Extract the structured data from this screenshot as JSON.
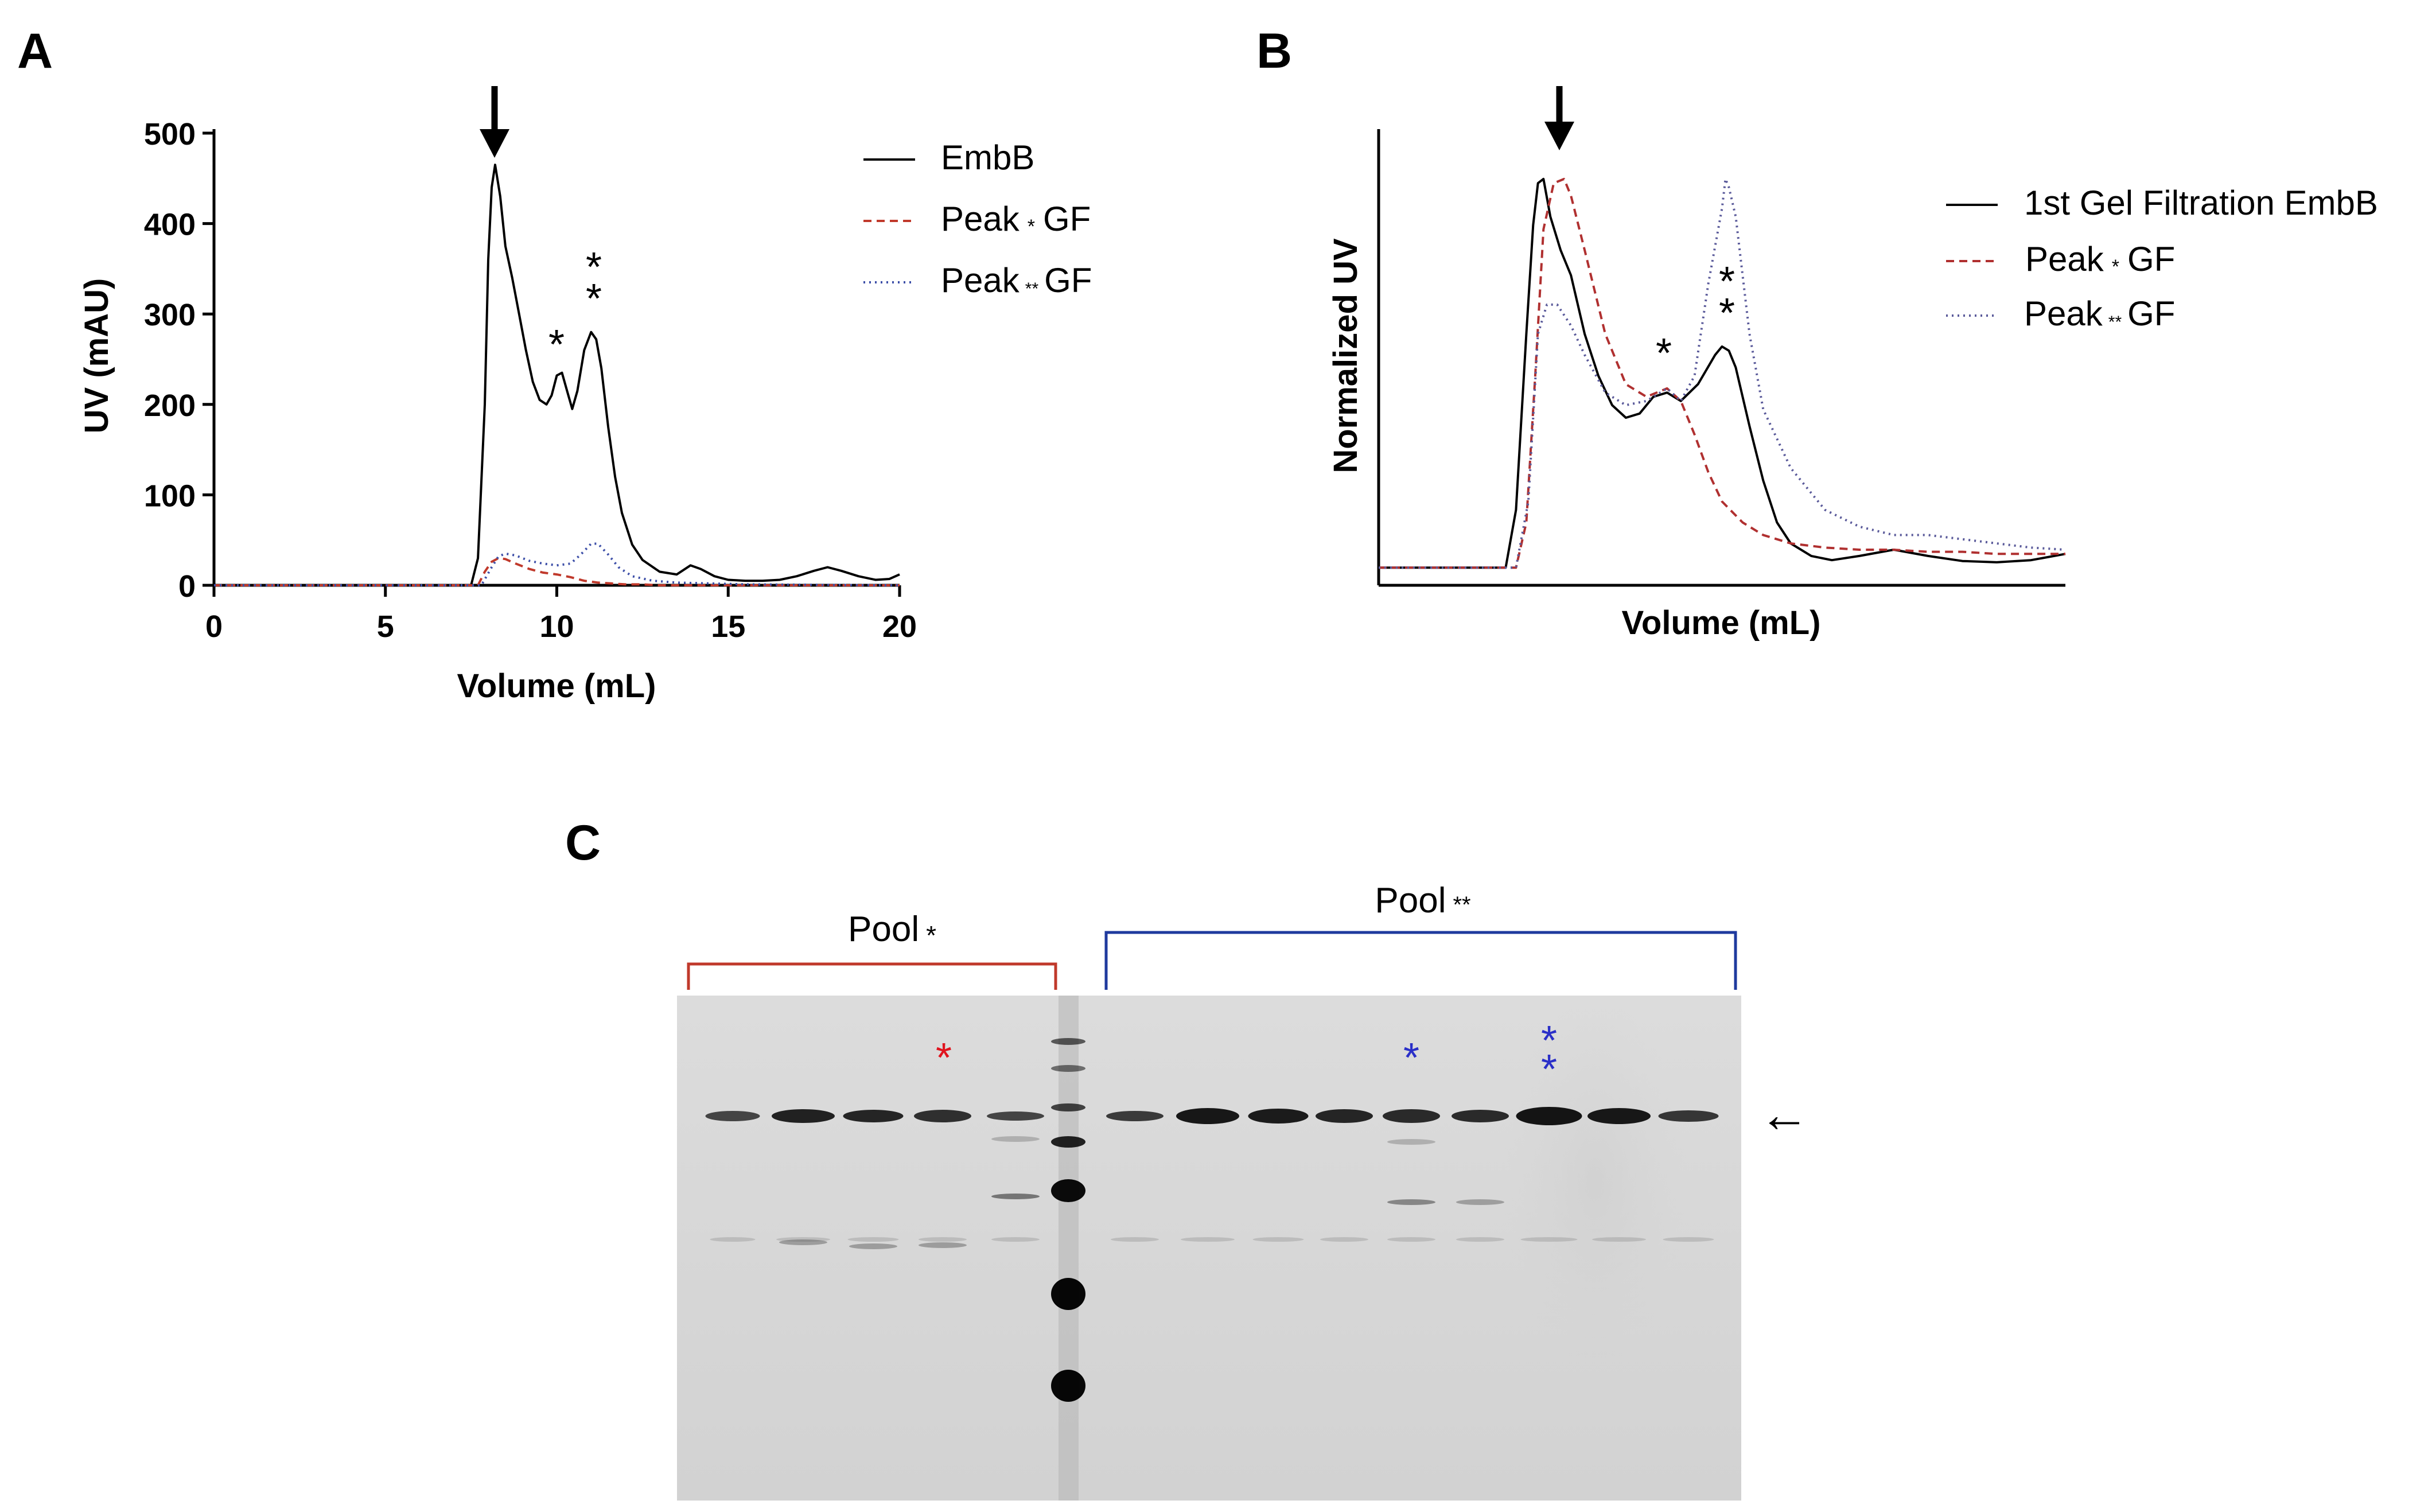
{
  "panels": {
    "a": "A",
    "b": "B",
    "c": "C"
  },
  "chart_data": [
    {
      "type": "line",
      "xlabel": "Volume (mL)",
      "ylabel": "UV (mAU)",
      "xlim": [
        0,
        20
      ],
      "ylim": [
        0,
        500
      ],
      "xticks": [
        0,
        5,
        10,
        15,
        20
      ],
      "yticks": [
        0,
        100,
        200,
        300,
        400,
        500
      ],
      "legend_position": "top-right",
      "series": [
        {
          "name": "EmbB",
          "style": "solid",
          "color": "#000000",
          "x": [
            0,
            7.5,
            7.7,
            7.9,
            8.0,
            8.1,
            8.2,
            8.35,
            8.5,
            8.7,
            8.9,
            9.1,
            9.3,
            9.5,
            9.7,
            9.85,
            10.0,
            10.15,
            10.3,
            10.45,
            10.6,
            10.8,
            11.0,
            11.15,
            11.3,
            11.5,
            11.7,
            11.9,
            12.2,
            12.5,
            13.0,
            13.5,
            13.9,
            14.2,
            14.6,
            15.0,
            15.5,
            16.0,
            16.5,
            17.0,
            17.5,
            17.9,
            18.3,
            18.8,
            19.3,
            19.7,
            20.0
          ],
          "y": [
            0,
            0,
            30,
            200,
            360,
            440,
            465,
            430,
            375,
            340,
            300,
            260,
            225,
            205,
            200,
            210,
            232,
            235,
            215,
            195,
            215,
            260,
            280,
            272,
            240,
            175,
            120,
            80,
            45,
            28,
            15,
            12,
            22,
            18,
            10,
            6,
            5,
            5,
            6,
            10,
            16,
            20,
            16,
            10,
            6,
            7,
            12
          ]
        },
        {
          "name": "Peak * GF",
          "style": "dashed",
          "color": "#c0392b",
          "x": [
            0,
            7.7,
            7.9,
            8.1,
            8.3,
            8.5,
            8.8,
            9.2,
            9.6,
            10.0,
            10.4,
            10.8,
            11.2,
            11.6,
            12.0,
            12.5,
            13.0,
            20.0
          ],
          "y": [
            0,
            0,
            15,
            26,
            30,
            29,
            24,
            18,
            14,
            12,
            9,
            5,
            3,
            2,
            1,
            1,
            0,
            0
          ]
        },
        {
          "name": "Peak ** GF",
          "style": "dotted",
          "color": "#3d4fa8",
          "x": [
            0,
            7.8,
            8.1,
            8.3,
            8.5,
            8.8,
            9.2,
            9.6,
            10.0,
            10.4,
            10.7,
            11.0,
            11.2,
            11.5,
            11.8,
            12.2,
            12.8,
            13.5,
            14.5,
            15.5,
            20.0
          ],
          "y": [
            0,
            0,
            20,
            32,
            35,
            33,
            27,
            24,
            22,
            24,
            34,
            46,
            46,
            34,
            20,
            10,
            5,
            3,
            2,
            1,
            0
          ]
        }
      ],
      "annotations": [
        "↓",
        "*",
        "**"
      ]
    },
    {
      "type": "line",
      "xlabel": "Volume (mL)",
      "ylabel": "Normalized UV",
      "ylim": [
        0,
        1
      ],
      "legend_position": "top-right",
      "series": [
        {
          "name": "1st Gel Filtration EmbB",
          "style": "solid",
          "color": "#000000",
          "x": [
            0,
            0.185,
            0.2,
            0.215,
            0.225,
            0.232,
            0.24,
            0.25,
            0.265,
            0.28,
            0.3,
            0.32,
            0.34,
            0.36,
            0.38,
            0.4,
            0.42,
            0.44,
            0.465,
            0.49,
            0.5,
            0.51,
            0.52,
            0.54,
            0.56,
            0.58,
            0.6,
            0.63,
            0.66,
            0.7,
            0.75,
            0.8,
            0.85,
            0.9,
            0.95,
            1.0
          ],
          "y": [
            0.042,
            0.042,
            0.18,
            0.6,
            0.86,
            0.96,
            0.97,
            0.88,
            0.8,
            0.74,
            0.6,
            0.5,
            0.43,
            0.4,
            0.41,
            0.45,
            0.46,
            0.44,
            0.48,
            0.55,
            0.57,
            0.56,
            0.52,
            0.38,
            0.25,
            0.15,
            0.1,
            0.07,
            0.06,
            0.07,
            0.085,
            0.07,
            0.058,
            0.055,
            0.06,
            0.075
          ]
        },
        {
          "name": "Peak * GF",
          "style": "dashed",
          "color": "#b03030",
          "x": [
            0,
            0.2,
            0.215,
            0.228,
            0.24,
            0.255,
            0.27,
            0.28,
            0.3,
            0.33,
            0.36,
            0.39,
            0.42,
            0.44,
            0.46,
            0.48,
            0.5,
            0.53,
            0.56,
            0.6,
            0.65,
            0.7,
            0.75,
            0.8,
            0.85,
            0.9,
            0.95,
            1.0
          ],
          "y": [
            0.042,
            0.042,
            0.15,
            0.5,
            0.85,
            0.96,
            0.97,
            0.93,
            0.8,
            0.6,
            0.48,
            0.45,
            0.47,
            0.44,
            0.36,
            0.27,
            0.2,
            0.15,
            0.12,
            0.1,
            0.09,
            0.085,
            0.085,
            0.08,
            0.08,
            0.075,
            0.075,
            0.075
          ]
        },
        {
          "name": "Peak ** GF",
          "style": "dotted",
          "color": "#5a5a9a",
          "x": [
            0,
            0.2,
            0.218,
            0.232,
            0.245,
            0.26,
            0.28,
            0.3,
            0.33,
            0.36,
            0.39,
            0.42,
            0.44,
            0.46,
            0.48,
            0.5,
            0.505,
            0.51,
            0.52,
            0.54,
            0.56,
            0.6,
            0.65,
            0.7,
            0.75,
            0.8,
            0.85,
            0.9,
            0.95,
            1.0
          ],
          "y": [
            0.042,
            0.042,
            0.2,
            0.6,
            0.67,
            0.67,
            0.62,
            0.55,
            0.46,
            0.43,
            0.44,
            0.47,
            0.44,
            0.5,
            0.72,
            0.9,
            0.97,
            0.95,
            0.88,
            0.6,
            0.42,
            0.28,
            0.18,
            0.14,
            0.12,
            0.12,
            0.11,
            0.1,
            0.09,
            0.085
          ]
        }
      ],
      "annotations": [
        "↓",
        "*",
        "**"
      ]
    }
  ],
  "legend_a": {
    "items": [
      {
        "prefix": "EmbB",
        "mark": "",
        "suffix": ""
      },
      {
        "prefix": "Peak",
        "mark": "*",
        "suffix": "GF"
      },
      {
        "prefix": "Peak",
        "mark": "**",
        "suffix": "GF"
      }
    ]
  },
  "legend_b": {
    "items": [
      {
        "prefix": "1st Gel Filtration EmbB",
        "mark": "",
        "suffix": ""
      },
      {
        "prefix": "Peak",
        "mark": "*",
        "suffix": "GF"
      },
      {
        "prefix": "Peak",
        "mark": "**",
        "suffix": "GF"
      }
    ]
  },
  "gel": {
    "pool1_label": "Pool",
    "pool1_mark": "*",
    "pool2_label": "Pool",
    "pool2_mark": "**",
    "star_red": "*",
    "star_blue_1": "*",
    "star_blue_2": "**",
    "arrow": "←",
    "pool1_color": "#c0392b",
    "pool2_color": "#1f3a9e",
    "star_red_color": "#e0141e",
    "star_blue_color": "#2a2fc8"
  }
}
